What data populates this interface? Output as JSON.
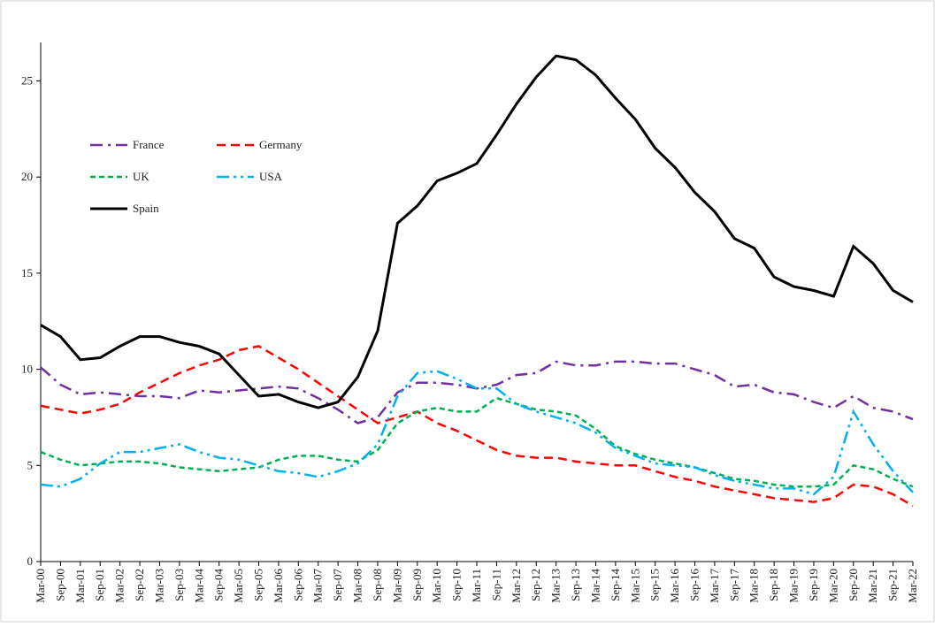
{
  "chart_data": {
    "type": "line",
    "categories": [
      "Mar-00",
      "Sep-00",
      "Mar-01",
      "Sep-01",
      "Mar-02",
      "Sep-02",
      "Mar-03",
      "Sep-03",
      "Mar-04",
      "Sep-04",
      "Mar-05",
      "Sep-05",
      "Mar-06",
      "Sep-06",
      "Mar-07",
      "Sep-07",
      "Mar-08",
      "Sep-08",
      "Mar-09",
      "Sep-09",
      "Mar-10",
      "Sep-10",
      "Mar-11",
      "Sep-11",
      "Mar-12",
      "Sep-12",
      "Mar-13",
      "Sep-13",
      "Mar-14",
      "Sep-14",
      "Mar-15",
      "Sep-15",
      "Mar-16",
      "Sep-16",
      "Mar-17",
      "Sep-17",
      "Mar-18",
      "Sep-18",
      "Mar-19",
      "Sep-19",
      "Mar-20",
      "Sep-20",
      "Mar-21",
      "Sep-21",
      "Mar-22"
    ],
    "series": [
      {
        "name": "France",
        "color": "#7030a0",
        "dash": "14,6,3,6",
        "values": [
          10.1,
          9.2,
          8.7,
          8.8,
          8.7,
          8.6,
          8.6,
          8.5,
          8.9,
          8.8,
          8.9,
          9.0,
          9.1,
          9.0,
          8.5,
          7.9,
          7.2,
          7.5,
          8.8,
          9.3,
          9.3,
          9.2,
          9.0,
          9.2,
          9.7,
          9.8,
          10.4,
          10.2,
          10.2,
          10.4,
          10.4,
          10.3,
          10.3,
          10.0,
          9.7,
          9.1,
          9.2,
          8.8,
          8.7,
          8.3,
          8.0,
          8.6,
          8.0,
          7.8,
          7.4
        ]
      },
      {
        "name": "Germany",
        "color": "#ff0000",
        "dash": "10,6",
        "values": [
          8.1,
          7.9,
          7.7,
          7.9,
          8.2,
          8.8,
          9.3,
          9.8,
          10.2,
          10.5,
          11.0,
          11.2,
          10.6,
          10.0,
          9.3,
          8.6,
          7.9,
          7.2,
          7.5,
          7.8,
          7.2,
          6.8,
          6.3,
          5.8,
          5.5,
          5.4,
          5.4,
          5.2,
          5.1,
          5.0,
          5.0,
          4.7,
          4.4,
          4.2,
          3.9,
          3.7,
          3.5,
          3.3,
          3.2,
          3.1,
          3.3,
          4.0,
          3.9,
          3.5,
          2.9
        ]
      },
      {
        "name": "UK",
        "color": "#00b050",
        "dash": "6,4",
        "values": [
          5.7,
          5.3,
          5.0,
          5.1,
          5.2,
          5.2,
          5.1,
          4.9,
          4.8,
          4.7,
          4.8,
          4.9,
          5.3,
          5.5,
          5.5,
          5.3,
          5.2,
          5.8,
          7.2,
          7.8,
          8.0,
          7.8,
          7.8,
          8.5,
          8.2,
          7.9,
          7.8,
          7.6,
          6.9,
          6.0,
          5.6,
          5.3,
          5.1,
          4.9,
          4.6,
          4.3,
          4.2,
          4.0,
          3.9,
          3.9,
          4.0,
          5.0,
          4.8,
          4.3,
          3.9
        ]
      },
      {
        "name": "USA",
        "color": "#00b0f0",
        "dash": "14,5,3,5,3,5",
        "values": [
          4.0,
          3.9,
          4.3,
          5.1,
          5.7,
          5.7,
          5.9,
          6.1,
          5.7,
          5.4,
          5.3,
          5.0,
          4.7,
          4.6,
          4.4,
          4.7,
          5.1,
          6.1,
          8.6,
          9.8,
          9.9,
          9.5,
          9.0,
          9.0,
          8.2,
          7.8,
          7.5,
          7.2,
          6.7,
          5.9,
          5.5,
          5.1,
          5.0,
          4.9,
          4.5,
          4.2,
          4.0,
          3.8,
          3.8,
          3.5,
          4.4,
          7.8,
          6.1,
          4.7,
          3.6
        ]
      },
      {
        "name": "Spain",
        "color": "#000000",
        "dash": "none",
        "values": [
          12.3,
          11.7,
          10.5,
          10.6,
          11.2,
          11.7,
          11.7,
          11.4,
          11.2,
          10.8,
          9.7,
          8.6,
          8.7,
          8.3,
          8.0,
          8.3,
          9.6,
          12.0,
          17.6,
          18.5,
          19.8,
          20.2,
          20.7,
          22.2,
          23.8,
          25.2,
          26.3,
          26.1,
          25.3,
          24.1,
          23.0,
          21.5,
          20.5,
          19.2,
          18.2,
          16.8,
          16.3,
          14.8,
          14.3,
          14.1,
          13.8,
          16.4,
          15.5,
          14.1,
          13.5
        ]
      }
    ],
    "ylim": [
      0,
      27
    ],
    "yticks": [
      0,
      5,
      10,
      15,
      20,
      25
    ],
    "legend": "upper left"
  }
}
